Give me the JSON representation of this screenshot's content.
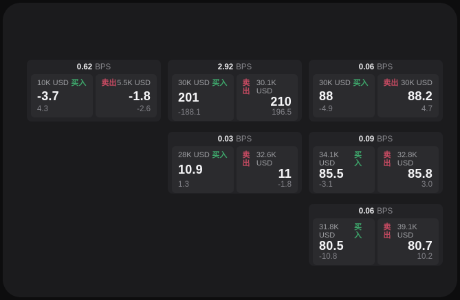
{
  "labels": {
    "bps_unit": "BPS",
    "buy": "买入",
    "sell": "卖出"
  },
  "colors": {
    "buy-color": "#3ea66b",
    "sell-color": "#c44a61",
    "surface": "#1b1b1d",
    "card": "#232326",
    "tile": "#2b2b2e"
  },
  "cards": [
    {
      "row": 1,
      "col": 1,
      "bps": "0.62",
      "buy": {
        "amount": "10K USD",
        "value": "-3.7",
        "sub": "4.3"
      },
      "sell": {
        "amount": "5.5K USD",
        "value": "-1.8",
        "sub": "-2.6"
      }
    },
    {
      "row": 1,
      "col": 2,
      "bps": "2.92",
      "buy": {
        "amount": "30K USD",
        "value": "201",
        "sub": "-188.1"
      },
      "sell": {
        "amount": "30.1K USD",
        "value": "210",
        "sub": "196.5"
      }
    },
    {
      "row": 1,
      "col": 3,
      "bps": "0.06",
      "buy": {
        "amount": "30K USD",
        "value": "88",
        "sub": "-4.9"
      },
      "sell": {
        "amount": "30K USD",
        "value": "88.2",
        "sub": "4.7"
      }
    },
    {
      "row": 2,
      "col": 2,
      "bps": "0.03",
      "buy": {
        "amount": "28K USD",
        "value": "10.9",
        "sub": "1.3"
      },
      "sell": {
        "amount": "32.6K USD",
        "value": "11",
        "sub": "-1.8"
      }
    },
    {
      "row": 2,
      "col": 3,
      "bps": "0.09",
      "buy": {
        "amount": "34.1K USD",
        "value": "85.5",
        "sub": "-3.1"
      },
      "sell": {
        "amount": "32.8K USD",
        "value": "85.8",
        "sub": "3.0"
      }
    },
    {
      "row": 3,
      "col": 3,
      "bps": "0.06",
      "buy": {
        "amount": "31.8K USD",
        "value": "80.5",
        "sub": "-10.8"
      },
      "sell": {
        "amount": "39.1K USD",
        "value": "80.7",
        "sub": "10.2"
      }
    }
  ]
}
